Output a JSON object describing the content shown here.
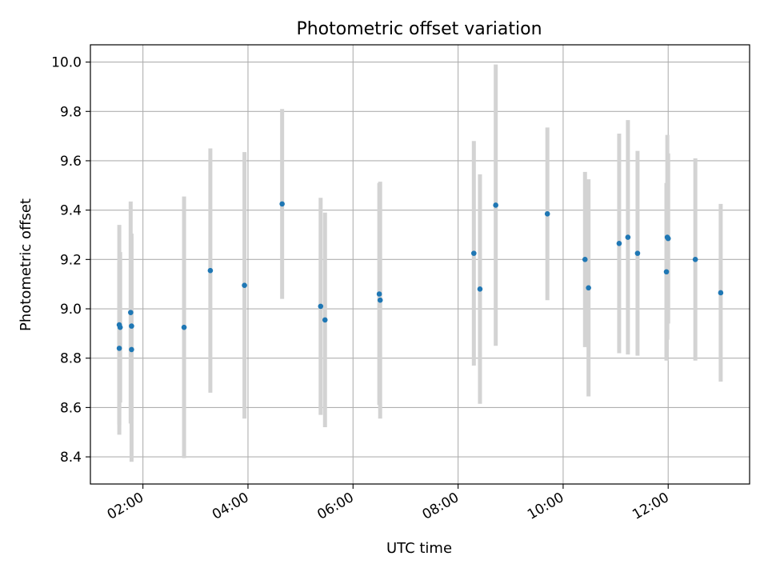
{
  "chart_data": {
    "type": "scatter",
    "title": "Photometric offset variation",
    "xlabel": "UTC time",
    "ylabel": "Photometric offset",
    "x_format": "HH:MM",
    "xlim": [
      "01:00",
      "13:33"
    ],
    "ylim": [
      8.29,
      10.07
    ],
    "x_ticks": [
      "02:00",
      "04:00",
      "06:00",
      "08:00",
      "10:00",
      "12:00"
    ],
    "y_ticks": [
      "8.4",
      "8.6",
      "8.8",
      "9.0",
      "9.2",
      "9.4",
      "9.6",
      "9.8",
      "10.0"
    ],
    "grid": true,
    "legend": "none",
    "colors": {
      "point": "#1f77b4",
      "errorbar": "#d3d3d3",
      "grid": "#b0b0b0"
    },
    "points": [
      {
        "x": "01:33",
        "y": 8.935,
        "yerr": 0.405
      },
      {
        "x": "01:34",
        "y": 8.925,
        "yerr": 0.305
      },
      {
        "x": "01:33",
        "y": 8.84,
        "yerr": 0.35
      },
      {
        "x": "01:46",
        "y": 8.985,
        "yerr": 0.45
      },
      {
        "x": "01:47",
        "y": 8.93,
        "yerr": 0.375
      },
      {
        "x": "01:47",
        "y": 8.835,
        "yerr": 0.455
      },
      {
        "x": "02:47",
        "y": 8.925,
        "yerr": 0.53
      },
      {
        "x": "03:17",
        "y": 9.155,
        "yerr": 0.495
      },
      {
        "x": "03:56",
        "y": 9.095,
        "yerr": 0.54
      },
      {
        "x": "04:39",
        "y": 9.425,
        "yerr": 0.385
      },
      {
        "x": "05:23",
        "y": 9.01,
        "yerr": 0.44
      },
      {
        "x": "05:28",
        "y": 8.955,
        "yerr": 0.435
      },
      {
        "x": "06:30",
        "y": 9.06,
        "yerr": 0.45
      },
      {
        "x": "06:31",
        "y": 9.035,
        "yerr": 0.48
      },
      {
        "x": "08:18",
        "y": 9.225,
        "yerr": 0.455
      },
      {
        "x": "08:25",
        "y": 9.08,
        "yerr": 0.465
      },
      {
        "x": "08:43",
        "y": 9.42,
        "yerr": 0.57
      },
      {
        "x": "09:42",
        "y": 9.385,
        "yerr": 0.35
      },
      {
        "x": "10:25",
        "y": 9.2,
        "yerr": 0.355
      },
      {
        "x": "10:29",
        "y": 9.085,
        "yerr": 0.44
      },
      {
        "x": "11:04",
        "y": 9.265,
        "yerr": 0.445
      },
      {
        "x": "11:14",
        "y": 9.29,
        "yerr": 0.475
      },
      {
        "x": "11:25",
        "y": 9.225,
        "yerr": 0.415
      },
      {
        "x": "11:58",
        "y": 9.15,
        "yerr": 0.36
      },
      {
        "x": "11:59",
        "y": 9.29,
        "yerr": 0.415
      },
      {
        "x": "12:00",
        "y": 9.285,
        "yerr": 0.345
      },
      {
        "x": "12:31",
        "y": 9.2,
        "yerr": 0.41
      },
      {
        "x": "13:00",
        "y": 9.065,
        "yerr": 0.36
      }
    ]
  }
}
